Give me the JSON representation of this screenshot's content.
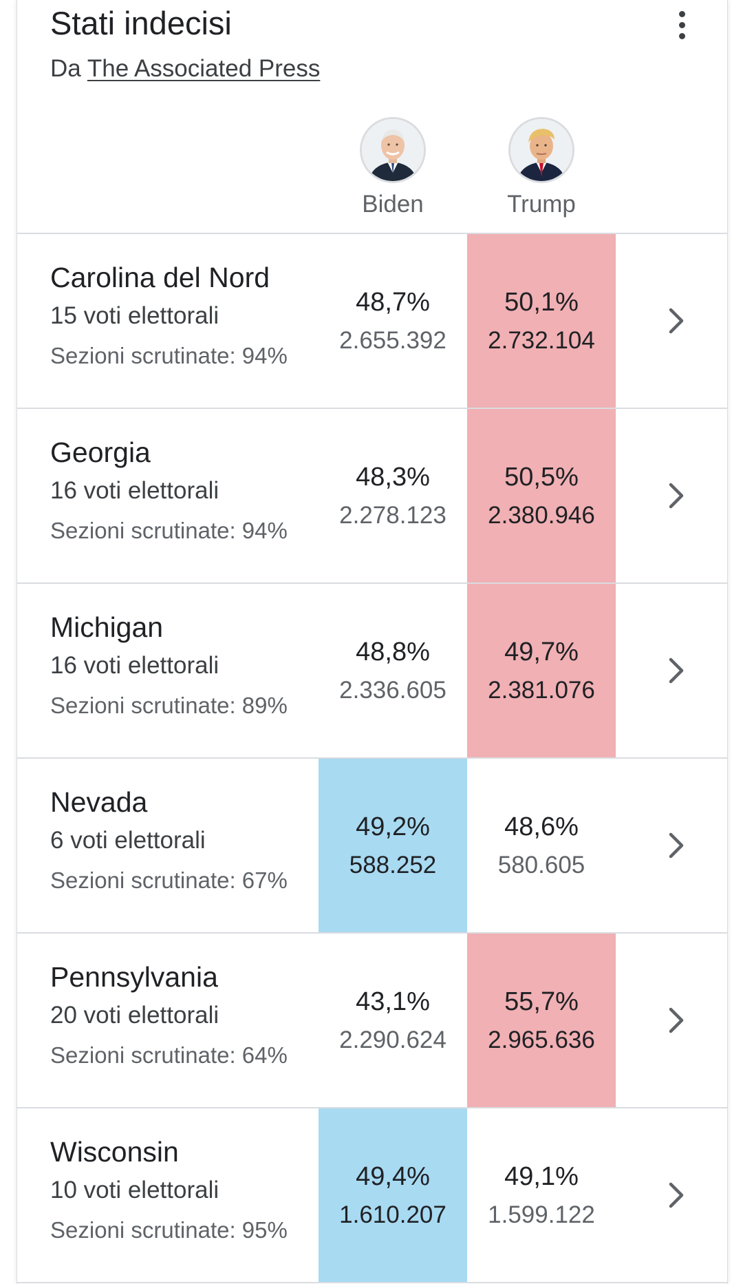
{
  "header": {
    "title": "Stati indecisi",
    "source_prefix": "Da",
    "source_link": "The Associated Press",
    "menu_icon": "more-vert-icon"
  },
  "candidates": [
    {
      "name": "Biden",
      "avatar": "biden-avatar",
      "accent": "#a8daf2"
    },
    {
      "name": "Trump",
      "avatar": "trump-avatar",
      "accent": "#f0b0b4"
    }
  ],
  "states": [
    {
      "name": "Carolina del Nord",
      "electoral": "15 voti elettorali",
      "reported": "Sezioni scrutinate: 94%",
      "biden_pct": "48,7%",
      "biden_votes": "2.655.392",
      "trump_pct": "50,1%",
      "trump_votes": "2.732.104",
      "leader": "trump"
    },
    {
      "name": "Georgia",
      "electoral": "16 voti elettorali",
      "reported": "Sezioni scrutinate: 94%",
      "biden_pct": "48,3%",
      "biden_votes": "2.278.123",
      "trump_pct": "50,5%",
      "trump_votes": "2.380.946",
      "leader": "trump"
    },
    {
      "name": "Michigan",
      "electoral": "16 voti elettorali",
      "reported": "Sezioni scrutinate: 89%",
      "biden_pct": "48,8%",
      "biden_votes": "2.336.605",
      "trump_pct": "49,7%",
      "trump_votes": "2.381.076",
      "leader": "trump"
    },
    {
      "name": "Nevada",
      "electoral": "6 voti elettorali",
      "reported": "Sezioni scrutinate: 67%",
      "biden_pct": "49,2%",
      "biden_votes": "588.252",
      "trump_pct": "48,6%",
      "trump_votes": "580.605",
      "leader": "biden"
    },
    {
      "name": "Pennsylvania",
      "electoral": "20 voti elettorali",
      "reported": "Sezioni scrutinate: 64%",
      "biden_pct": "43,1%",
      "biden_votes": "2.290.624",
      "trump_pct": "55,7%",
      "trump_votes": "2.965.636",
      "leader": "trump"
    },
    {
      "name": "Wisconsin",
      "electoral": "10 voti elettorali",
      "reported": "Sezioni scrutinate: 95%",
      "biden_pct": "49,4%",
      "biden_votes": "1.610.207",
      "trump_pct": "49,1%",
      "trump_votes": "1.599.122",
      "leader": "biden"
    }
  ]
}
